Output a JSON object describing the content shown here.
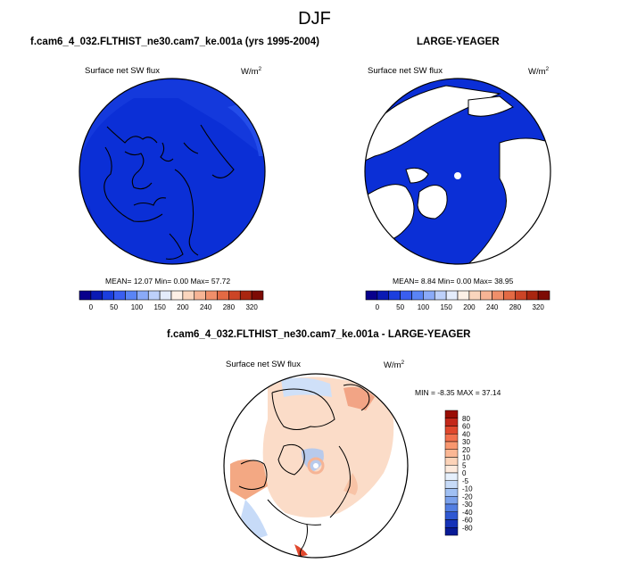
{
  "figure": {
    "title": "DJF"
  },
  "panels": [
    {
      "subtitle": "f.cam6_4_032.FLTHIST_ne30.cam7_ke.001a (yrs 1995-2004)",
      "variable": "Surface net SW flux",
      "units": "W/m",
      "units_sup": "2",
      "stats": "MEAN=  12.07  Min=   0.00  Max=  57.72",
      "colorbar": {
        "colors": [
          "#08008c",
          "#0a1ab4",
          "#1b3ede",
          "#3a5ef0",
          "#5a84f5",
          "#8aaaf8",
          "#bdd0fa",
          "#e4ecfc",
          "#fdf0e6",
          "#fad5bd",
          "#f6b495",
          "#f08f6a",
          "#e36a44",
          "#cc4526",
          "#a92610",
          "#7d0b05"
        ],
        "ticks": [
          "0",
          "50",
          "100",
          "150",
          "200",
          "240",
          "280",
          "320"
        ]
      }
    },
    {
      "subtitle": "LARGE-YEAGER",
      "variable": "Surface net SW flux",
      "units": "W/m",
      "units_sup": "2",
      "stats": "MEAN=   8.84  Min=   0.00  Max=  38.95",
      "colorbar": {
        "colors": [
          "#08008c",
          "#0a1ab4",
          "#1b3ede",
          "#3a5ef0",
          "#5a84f5",
          "#8aaaf8",
          "#bdd0fa",
          "#e4ecfc",
          "#fdf0e6",
          "#fad5bd",
          "#f6b495",
          "#f08f6a",
          "#e36a44",
          "#cc4526",
          "#a92610",
          "#7d0b05"
        ],
        "ticks": [
          "0",
          "50",
          "100",
          "150",
          "200",
          "240",
          "280",
          "320"
        ]
      }
    },
    {
      "subtitle": "f.cam6_4_032.FLTHIST_ne30.cam7_ke.001a - LARGE-YEAGER",
      "variable": "Surface net SW flux",
      "units": "W/m",
      "units_sup": "2",
      "stats": "MIN =  -8.35 MAX =  37.14",
      "colorbar": {
        "levels": [
          "80",
          "60",
          "40",
          "30",
          "20",
          "10",
          "5",
          "0",
          "-5",
          "-10",
          "-20",
          "-30",
          "-40",
          "-60",
          "-80"
        ],
        "colors": [
          "#9a0d05",
          "#c3281a",
          "#e0482d",
          "#f2714e",
          "#f8976f",
          "#fbb794",
          "#fcd3b8",
          "#fdeadd",
          "#e6f0fc",
          "#c7dbf8",
          "#a0c0f3",
          "#7aa1ec",
          "#527ee2",
          "#2f58d2",
          "#1532b8",
          "#081a96"
        ]
      }
    }
  ],
  "chart_data": [
    {
      "type": "heatmap",
      "title": "f.cam6_4_032.FLTHIST_ne30.cam7_ke.001a (yrs 1995-2004)",
      "variable": "Surface net SW flux",
      "units": "W/m2",
      "projection": "north polar stereographic",
      "colorbar_range": [
        0,
        320
      ],
      "mean": 12.07,
      "min": 0.0,
      "max": 57.72
    },
    {
      "type": "heatmap",
      "title": "LARGE-YEAGER",
      "variable": "Surface net SW flux",
      "units": "W/m2",
      "projection": "north polar stereographic",
      "colorbar_range": [
        0,
        320
      ],
      "mean": 8.84,
      "min": 0.0,
      "max": 38.95
    },
    {
      "type": "heatmap",
      "title": "f.cam6_4_032.FLTHIST_ne30.cam7_ke.001a - LARGE-YEAGER",
      "variable": "Surface net SW flux",
      "units": "W/m2",
      "projection": "north polar stereographic",
      "colorbar_levels": [
        -80,
        -60,
        -40,
        -30,
        -20,
        -10,
        -5,
        0,
        5,
        10,
        20,
        30,
        40,
        60,
        80
      ],
      "min": -8.35,
      "max": 37.14
    }
  ]
}
